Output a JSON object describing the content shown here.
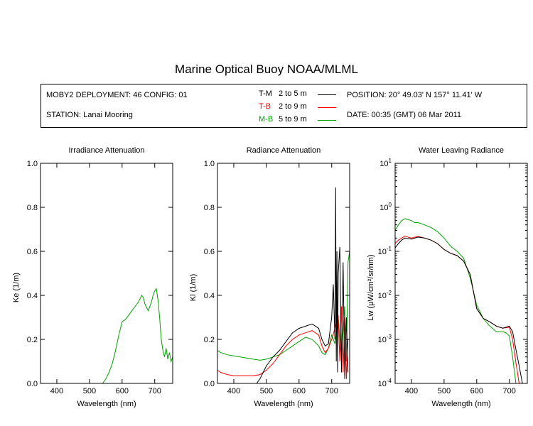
{
  "title": "Marine Optical Buoy NOAA/MLML",
  "info": {
    "deployment": "MOBY2 DEPLOYMENT: 46 CONFIG: 01",
    "station": "STATION: Lanai Mooring",
    "position": "POSITION: 20° 49.03' N   157° 11.41' W",
    "date": "DATE: 00:35 (GMT) 06 Mar 2011"
  },
  "legend": [
    {
      "code": "T-M",
      "range": "2 to 5  m",
      "color": "#000000"
    },
    {
      "code": "T-B",
      "range": "2 to 9  m",
      "color": "#ff0000"
    },
    {
      "code": "M-B",
      "range": "5 to 9  m",
      "color": "#00a000"
    }
  ],
  "chart_data": [
    {
      "type": "line",
      "title": "Irradiance Attenuation",
      "xlabel": "Wavelength (nm)",
      "ylabel": "Ke  (1/m)",
      "xlim": [
        350,
        755
      ],
      "ylim": [
        0,
        1
      ],
      "xticks": [
        "400",
        "500",
        "600",
        "700"
      ],
      "yticks": [
        "0.0",
        "0.2",
        "0.4",
        "0.6",
        "0.8",
        "1.0"
      ],
      "series": [
        {
          "color": "#00a000",
          "x": [
            540,
            550,
            560,
            570,
            580,
            590,
            600,
            610,
            620,
            630,
            640,
            650,
            660,
            665,
            670,
            680,
            690,
            695,
            700,
            705,
            710,
            715,
            720,
            725,
            730,
            735,
            740,
            745,
            750,
            755
          ],
          "y": [
            0.0,
            0.02,
            0.05,
            0.09,
            0.15,
            0.22,
            0.28,
            0.29,
            0.31,
            0.33,
            0.35,
            0.37,
            0.4,
            0.39,
            0.36,
            0.33,
            0.37,
            0.4,
            0.42,
            0.43,
            0.38,
            0.3,
            0.2,
            0.15,
            0.12,
            0.16,
            0.11,
            0.14,
            0.1,
            0.12
          ]
        }
      ]
    },
    {
      "type": "line",
      "title": "Radiance Attenuation",
      "xlabel": "Wavelength (nm)",
      "ylabel": "Kl  (1/m)",
      "xlim": [
        350,
        755
      ],
      "ylim": [
        0,
        1
      ],
      "xticks": [
        "400",
        "500",
        "600",
        "700"
      ],
      "yticks": [
        "0.0",
        "0.2",
        "0.4",
        "0.6",
        "0.8",
        "1.0"
      ],
      "series": [
        {
          "color": "#00a000",
          "x": [
            350,
            360,
            380,
            400,
            420,
            440,
            460,
            480,
            500,
            520,
            540,
            560,
            580,
            600,
            620,
            640,
            660,
            670,
            680,
            690,
            700,
            710,
            720,
            730,
            740,
            745,
            750,
            755
          ],
          "y": [
            0.15,
            0.14,
            0.13,
            0.125,
            0.12,
            0.115,
            0.11,
            0.105,
            0.11,
            0.12,
            0.13,
            0.15,
            0.17,
            0.19,
            0.21,
            0.2,
            0.17,
            0.14,
            0.13,
            0.16,
            0.22,
            0.18,
            0.3,
            0.12,
            0.35,
            0.1,
            0.55,
            0.6
          ]
        },
        {
          "color": "#ff0000",
          "x": [
            350,
            360,
            380,
            400,
            420,
            440,
            460,
            480,
            500,
            520,
            540,
            560,
            580,
            600,
            620,
            640,
            660,
            670,
            680,
            690,
            700,
            710,
            720,
            725,
            730,
            735,
            740,
            745,
            750
          ],
          "y": [
            0.06,
            0.05,
            0.04,
            0.035,
            0.035,
            0.035,
            0.035,
            0.04,
            0.06,
            0.09,
            0.13,
            0.17,
            0.2,
            0.22,
            0.23,
            0.24,
            0.22,
            0.17,
            0.14,
            0.16,
            0.2,
            0.25,
            0.31,
            0.1,
            0.35,
            0.05,
            0.3,
            0.02,
            0.2
          ]
        },
        {
          "color": "#000000",
          "x": [
            470,
            480,
            490,
            500,
            510,
            520,
            540,
            560,
            580,
            600,
            620,
            640,
            660,
            670,
            680,
            690,
            700,
            705,
            710,
            712,
            714,
            716,
            718,
            720,
            725,
            730,
            735,
            740,
            745,
            750
          ],
          "y": [
            0.0,
            0.02,
            0.05,
            0.08,
            0.1,
            0.12,
            0.15,
            0.19,
            0.23,
            0.25,
            0.26,
            0.27,
            0.25,
            0.2,
            0.17,
            0.18,
            0.3,
            0.45,
            0.2,
            0.89,
            0.1,
            0.6,
            0.05,
            0.5,
            0.62,
            0.05,
            0.55,
            0.02,
            0.3,
            0.05
          ]
        }
      ]
    },
    {
      "type": "line",
      "title": "Water Leaving Radiance",
      "xlabel": "Wavelength (nm)",
      "ylabel": "Lw  (μW/cm²/sr/nm)",
      "xlim": [
        350,
        755
      ],
      "yscale": "log",
      "ylim": [
        0.0001,
        10
      ],
      "xticks": [
        "400",
        "500",
        "600",
        "700"
      ],
      "yticks": [
        "10-4",
        "10-3",
        "10-2",
        "10-1",
        "100",
        "101"
      ],
      "series": [
        {
          "color": "#00a000",
          "x": [
            350,
            360,
            370,
            380,
            400,
            410,
            420,
            440,
            460,
            480,
            500,
            520,
            540,
            560,
            580,
            600,
            620,
            640,
            660,
            680,
            690,
            700,
            710,
            720,
            730
          ],
          "y": [
            0.3,
            0.4,
            0.5,
            0.55,
            0.5,
            0.45,
            0.45,
            0.4,
            0.35,
            0.28,
            0.2,
            0.13,
            0.1,
            0.07,
            0.025,
            0.006,
            0.003,
            0.002,
            0.0015,
            0.0015,
            0.0014,
            0.0012,
            0.0004,
            0.0001,
            0.0001
          ]
        },
        {
          "color": "#ff0000",
          "x": [
            350,
            360,
            370,
            380,
            400,
            420,
            440,
            460,
            480,
            500,
            520,
            540,
            560,
            580,
            600,
            620,
            640,
            660,
            680,
            700,
            710,
            720,
            730
          ],
          "y": [
            0.15,
            0.18,
            0.2,
            0.22,
            0.2,
            0.22,
            0.2,
            0.18,
            0.15,
            0.11,
            0.09,
            0.08,
            0.06,
            0.03,
            0.005,
            0.003,
            0.0025,
            0.002,
            0.0018,
            0.0019,
            0.001,
            0.0003,
            0.0001
          ]
        },
        {
          "color": "#000000",
          "x": [
            350,
            360,
            370,
            380,
            400,
            420,
            440,
            460,
            480,
            500,
            520,
            540,
            560,
            580,
            600,
            620,
            640,
            660,
            680,
            700,
            710,
            720,
            730,
            740
          ],
          "y": [
            0.12,
            0.15,
            0.18,
            0.2,
            0.19,
            0.21,
            0.2,
            0.18,
            0.15,
            0.11,
            0.09,
            0.08,
            0.06,
            0.03,
            0.005,
            0.003,
            0.0025,
            0.002,
            0.0018,
            0.002,
            0.0015,
            0.0006,
            0.00025,
            0.0001
          ]
        }
      ]
    }
  ]
}
